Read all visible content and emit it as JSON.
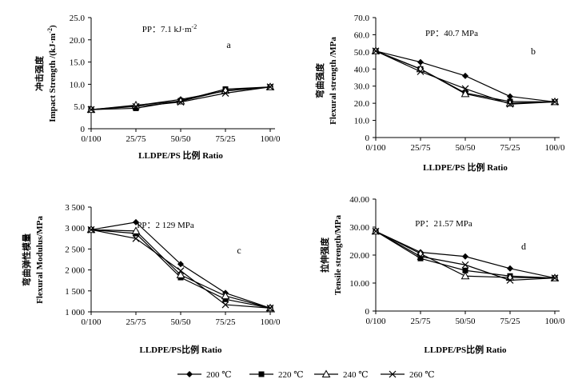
{
  "legend": [
    {
      "label": "200 ℃",
      "marker": "diamond"
    },
    {
      "label": "220 ℃",
      "marker": "square"
    },
    {
      "label": "240 ℃",
      "marker": "triangle"
    },
    {
      "label": "260 ℃",
      "marker": "x"
    }
  ],
  "chart_data": [
    {
      "type": "line",
      "panel": "a",
      "annotation": "PP：7.1 kJ·m",
      "annotation_sup": "-2",
      "xlabel": "LLDPE/PS 比例 Ratio",
      "ylabel_cn": "冲击强度",
      "ylabel_en": "Impact Strength /(kJ·m",
      "ylabel_sup": "-2",
      "ylabel_close": ")",
      "categories": [
        "0/100",
        "25/75",
        "50/50",
        "75/25",
        "100/0"
      ],
      "ylim": [
        0,
        25
      ],
      "yticks": [
        "0",
        "5.0",
        "10.0",
        "15.0",
        "20.0",
        "25.0"
      ],
      "series": [
        {
          "name": "200 ℃",
          "values": [
            4.3,
            5.2,
            6.6,
            8.5,
            9.4
          ]
        },
        {
          "name": "220 ℃",
          "values": [
            4.3,
            4.6,
            6.3,
            8.9,
            9.4
          ]
        },
        {
          "name": "240 ℃",
          "values": [
            4.3,
            5.3,
            6.2,
            8.6,
            9.4
          ]
        },
        {
          "name": "260 ℃",
          "values": [
            4.3,
            5.0,
            6.0,
            8.0,
            9.4
          ]
        }
      ]
    },
    {
      "type": "line",
      "panel": "b",
      "annotation": "PP：40.7 MPa",
      "xlabel": "LLDPE/PS 比例 Ratio",
      "ylabel_cn": "弯曲强度",
      "ylabel_en": "Flexural strength /MPa",
      "categories": [
        "0/100",
        "25/75",
        "50/50",
        "75/25",
        "100/0"
      ],
      "ylim": [
        0,
        70
      ],
      "yticks": [
        "0",
        "10.0",
        "20.0",
        "30.0",
        "40.0",
        "50.0",
        "60.0",
        "70.0"
      ],
      "series": [
        {
          "name": "200 ℃",
          "values": [
            50.5,
            44.0,
            36.0,
            24.0,
            20.8
          ]
        },
        {
          "name": "220 ℃",
          "values": [
            50.5,
            40.0,
            26.0,
            21.0,
            20.8
          ]
        },
        {
          "name": "240 ℃",
          "values": [
            50.5,
            40.0,
            25.5,
            20.0,
            20.8
          ]
        },
        {
          "name": "260 ℃",
          "values": [
            50.5,
            38.5,
            28.5,
            19.5,
            20.8
          ]
        }
      ]
    },
    {
      "type": "line",
      "panel": "c",
      "annotation": "PP：2 129 MPa",
      "xlabel": "LLDPE/PS比例 Ratio",
      "ylabel_cn": "弯曲弹性模量",
      "ylabel_en": "Flexural Modulus/MPa",
      "categories": [
        "0/100",
        "25/75",
        "50/50",
        "75/25",
        "100/0"
      ],
      "ylim": [
        1000,
        3500
      ],
      "yticks": [
        "1 000",
        "1 500",
        "2 000",
        "2 500",
        "3 000",
        "3 500"
      ],
      "series": [
        {
          "name": "200 ℃",
          "values": [
            2960,
            3140,
            2140,
            1450,
            1090
          ]
        },
        {
          "name": "220 ℃",
          "values": [
            2960,
            2870,
            1820,
            1300,
            1090
          ]
        },
        {
          "name": "240 ℃",
          "values": [
            2960,
            2930,
            1880,
            1380,
            1090
          ]
        },
        {
          "name": "260 ℃",
          "values": [
            2960,
            2750,
            1980,
            1170,
            1090
          ]
        }
      ]
    },
    {
      "type": "line",
      "panel": "d",
      "annotation": "PP：21.57 MPa",
      "xlabel": "LLDPE/PS比例 Ratio",
      "ylabel_cn": "拉伸强度",
      "ylabel_en": "Tensile strength/MPa",
      "categories": [
        "0/100",
        "25/75",
        "50/50",
        "75/25",
        "100/0"
      ],
      "ylim": [
        0,
        40
      ],
      "yticks": [
        "0",
        "10.00",
        "20.00",
        "30.00",
        "40.00"
      ],
      "series": [
        {
          "name": "200 ℃",
          "values": [
            28.5,
            21.0,
            19.5,
            15.2,
            11.8
          ]
        },
        {
          "name": "220 ℃",
          "values": [
            28.5,
            18.8,
            14.5,
            12.5,
            11.8
          ]
        },
        {
          "name": "240 ℃",
          "values": [
            28.5,
            20.5,
            12.5,
            12.0,
            11.8
          ]
        },
        {
          "name": "260 ℃",
          "values": [
            28.5,
            19.5,
            16.5,
            11.0,
            11.8
          ]
        }
      ]
    }
  ]
}
